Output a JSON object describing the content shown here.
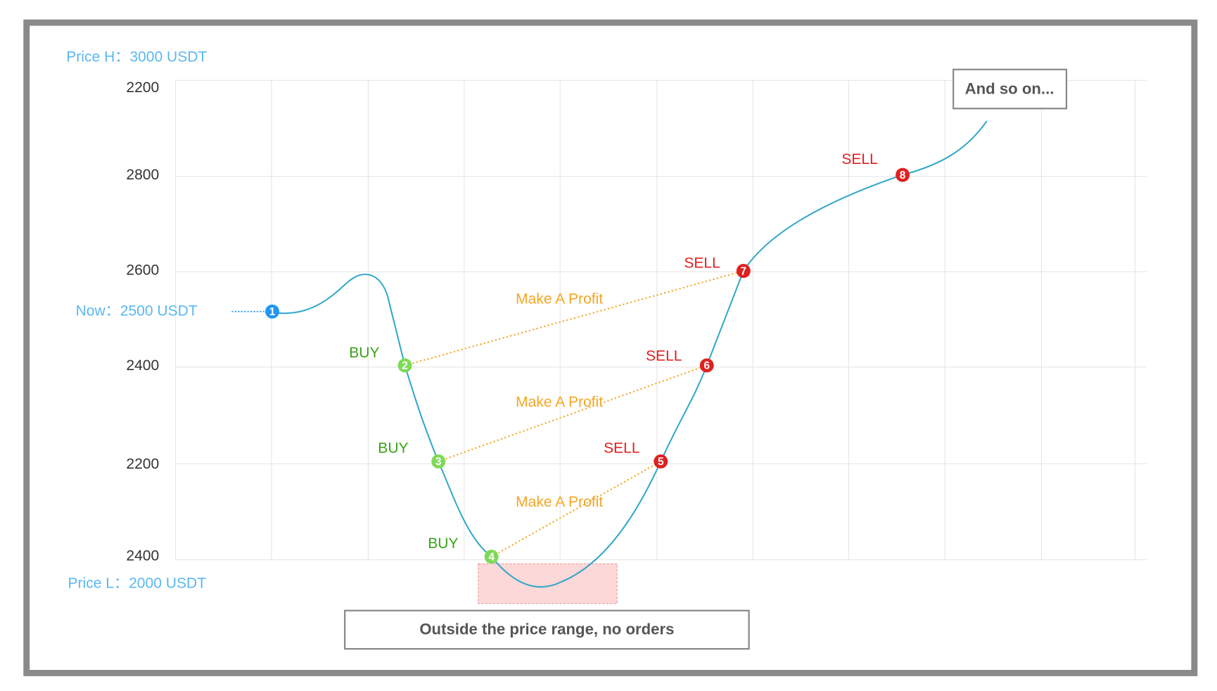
{
  "price_high": "Price H：3000 USDT",
  "price_low": "Price L：2000 USDT",
  "now": "Now：2500 USDT",
  "y_axis_labels": [
    "2200",
    "2800",
    "2600",
    "2400",
    "2200",
    "2400"
  ],
  "points": [
    {
      "number": "1"
    },
    {
      "number": "2",
      "action": "BUY"
    },
    {
      "number": "3",
      "action": "BUY"
    },
    {
      "number": "4",
      "action": "BUY"
    },
    {
      "number": "5",
      "action": "SELL"
    },
    {
      "number": "6",
      "action": "SELL"
    },
    {
      "number": "7",
      "action": "SELL"
    },
    {
      "number": "8",
      "action": "SELL"
    }
  ],
  "profit_labels": [
    "Make A Profit",
    "Make A Profit",
    "Make A Profit"
  ],
  "notes": {
    "continuation": "And so on...",
    "outside_range": "Outside the price range, no orders"
  }
}
